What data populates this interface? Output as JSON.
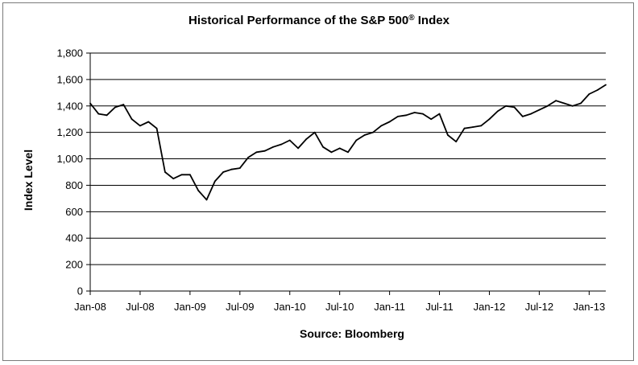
{
  "chart_data": {
    "type": "line",
    "title": "Historical Performance of the S&P 500",
    "title_mark": "®",
    "title_suffix": " Index",
    "xlabel": "Source: Bloomberg",
    "ylabel": "Index Level",
    "ylim": [
      0,
      1800
    ],
    "yticks": [
      0,
      200,
      400,
      600,
      800,
      1000,
      1200,
      1400,
      1600,
      1800
    ],
    "ytick_labels": [
      "0",
      "200",
      "400",
      "600",
      "800",
      "1,000",
      "1,200",
      "1,400",
      "1,600",
      "1,800"
    ],
    "xlim": [
      "2008-01",
      "2013-03"
    ],
    "xticks": [
      "2008-01",
      "2008-07",
      "2009-01",
      "2009-07",
      "2010-01",
      "2010-07",
      "2011-01",
      "2011-07",
      "2012-01",
      "2012-07",
      "2013-01"
    ],
    "xtick_labels": [
      "Jan-08",
      "Jul-08",
      "Jan-09",
      "Jul-09",
      "Jan-10",
      "Jul-10",
      "Jan-11",
      "Jul-11",
      "Jan-12",
      "Jul-12",
      "Jan-13"
    ],
    "grid": "horizontal",
    "line_color": "#000000",
    "series": [
      {
        "x": [
          "2008-01",
          "2008-02",
          "2008-03",
          "2008-04",
          "2008-05",
          "2008-06",
          "2008-07",
          "2008-08",
          "2008-09",
          "2008-10",
          "2008-11",
          "2008-12",
          "2009-01",
          "2009-02",
          "2009-03",
          "2009-04",
          "2009-05",
          "2009-06",
          "2009-07",
          "2009-08",
          "2009-09",
          "2009-10",
          "2009-11",
          "2009-12",
          "2010-01",
          "2010-02",
          "2010-03",
          "2010-04",
          "2010-05",
          "2010-06",
          "2010-07",
          "2010-08",
          "2010-09",
          "2010-10",
          "2010-11",
          "2010-12",
          "2011-01",
          "2011-02",
          "2011-03",
          "2011-04",
          "2011-05",
          "2011-06",
          "2011-07",
          "2011-08",
          "2011-09",
          "2011-10",
          "2011-11",
          "2011-12",
          "2012-01",
          "2012-02",
          "2012-03",
          "2012-04",
          "2012-05",
          "2012-06",
          "2012-07",
          "2012-08",
          "2012-09",
          "2012-10",
          "2012-11",
          "2012-12",
          "2013-01",
          "2013-02",
          "2013-03"
        ],
        "values": [
          1420,
          1340,
          1330,
          1390,
          1410,
          1300,
          1250,
          1280,
          1230,
          900,
          850,
          880,
          880,
          760,
          690,
          830,
          900,
          920,
          930,
          1010,
          1050,
          1060,
          1090,
          1110,
          1140,
          1080,
          1150,
          1200,
          1090,
          1050,
          1080,
          1050,
          1140,
          1180,
          1200,
          1250,
          1280,
          1320,
          1330,
          1350,
          1340,
          1300,
          1340,
          1180,
          1130,
          1230,
          1240,
          1250,
          1300,
          1360,
          1400,
          1390,
          1320,
          1340,
          1370,
          1400,
          1440,
          1420,
          1400,
          1420,
          1490,
          1520,
          1560
        ]
      }
    ]
  }
}
